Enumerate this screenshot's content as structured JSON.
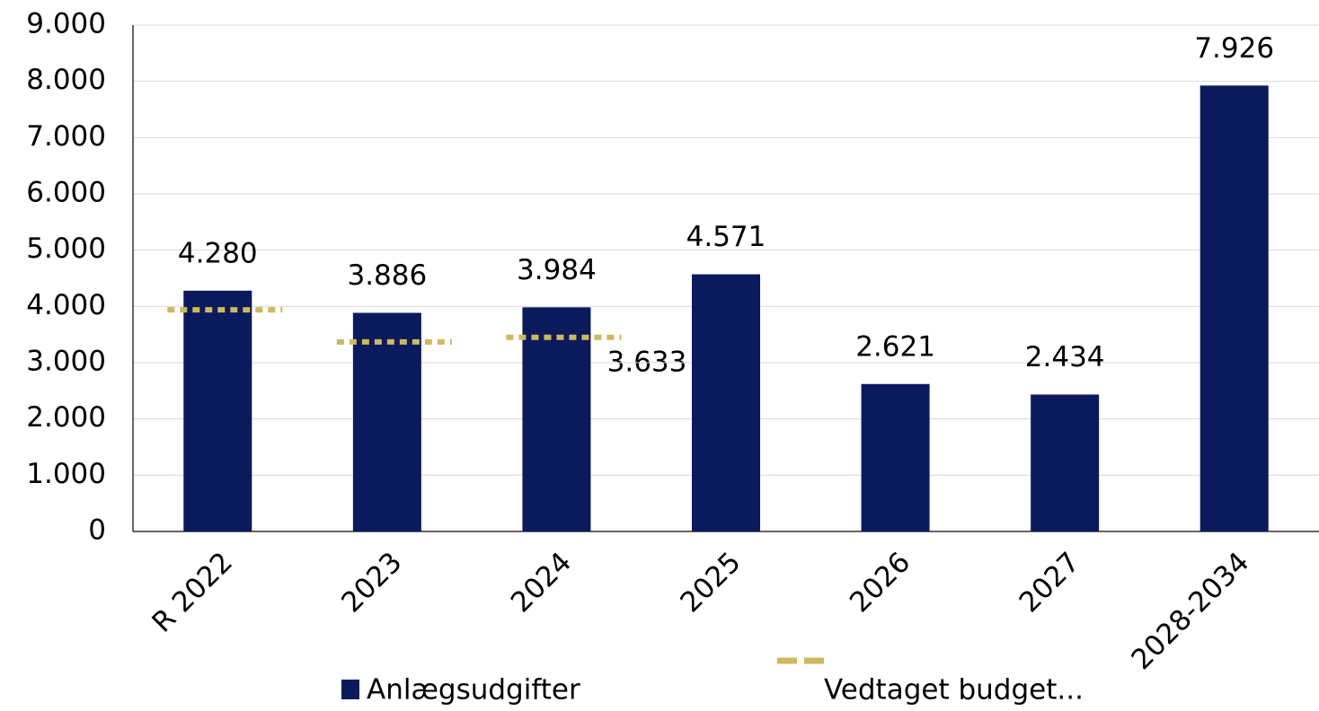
{
  "chart_data": {
    "type": "bar",
    "categories": [
      "R 2022",
      "2023",
      "2024",
      "2025",
      "2026",
      "2027",
      "2028-2034"
    ],
    "series": [
      {
        "name": "Anlægsudgifter",
        "color": "#0b1a5c",
        "values": [
          4280,
          3886,
          3984,
          4571,
          2621,
          2434,
          7926
        ],
        "value_labels": [
          "4.280",
          "3.886",
          "3.984",
          "4.571",
          "2.621",
          "2.434",
          "7.926"
        ]
      },
      {
        "name": "Vedtaget budget...",
        "color": "#cfb85c",
        "values": [
          3940,
          3370,
          3450,
          null,
          null,
          null,
          null
        ]
      }
    ],
    "annotations": [
      {
        "text": "3.633"
      }
    ],
    "ylim": [
      0,
      9000
    ],
    "yticks": [
      {
        "value": 0,
        "label": "0"
      },
      {
        "value": 1000,
        "label": "1.000"
      },
      {
        "value": 2000,
        "label": "2.000"
      },
      {
        "value": 3000,
        "label": "3.000"
      },
      {
        "value": 4000,
        "label": "4.000"
      },
      {
        "value": 5000,
        "label": "5.000"
      },
      {
        "value": 6000,
        "label": "6.000"
      },
      {
        "value": 7000,
        "label": "7.000"
      },
      {
        "value": 8000,
        "label": "8.000"
      },
      {
        "value": 9000,
        "label": "9.000"
      }
    ],
    "grid": true
  }
}
